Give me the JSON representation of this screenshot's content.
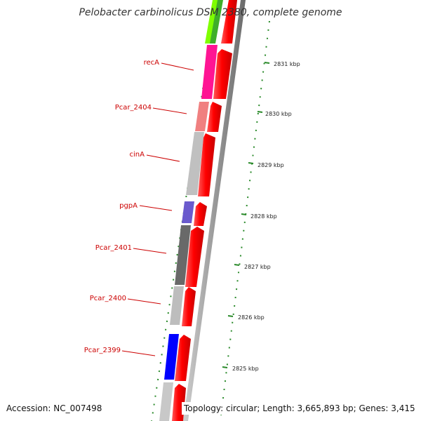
{
  "title": "Pelobacter carbinolicus DSM 2380, complete genome",
  "footer": {
    "accession": "Accession: NC_007498",
    "topology": "Topology: circular; Length: 3,665,893 bp; Genes: 3,415"
  },
  "colors": {
    "cds": "#ff0000",
    "backbone": "#888888",
    "gc_track": "#2a8a2a",
    "label": "#cc0000",
    "recA": "#ff1493",
    "Pcar_2404": "#f08080",
    "cinA": "#c0c0c0",
    "pgpA": "#6a5acd",
    "Pcar_2401": "#696969",
    "Pcar_2400": "#bdbdbd",
    "Pcar_2399": "#0000ff",
    "top_gene": "#7fff00"
  },
  "scale": {
    "ticks": [
      {
        "label": "2831 kbp",
        "kbp": 2831
      },
      {
        "label": "2830 kbp",
        "kbp": 2830
      },
      {
        "label": "2829 kbp",
        "kbp": 2829
      },
      {
        "label": "2828 kbp",
        "kbp": 2828
      },
      {
        "label": "2827 kbp",
        "kbp": 2827
      },
      {
        "label": "2826 kbp",
        "kbp": 2826
      },
      {
        "label": "2825 kbp",
        "kbp": 2825
      }
    ]
  },
  "genes": [
    {
      "name": "recA",
      "label": "recA",
      "color": "#ff1493"
    },
    {
      "name": "Pcar_2404",
      "label": "Pcar_2404",
      "color": "#f08080"
    },
    {
      "name": "cinA",
      "label": "cinA",
      "color": "#c0c0c0"
    },
    {
      "name": "pgpA",
      "label": "pgpA",
      "color": "#6a5acd"
    },
    {
      "name": "Pcar_2401",
      "label": "Pcar_2401",
      "color": "#696969"
    },
    {
      "name": "Pcar_2400",
      "label": "Pcar_2400",
      "color": "#bdbdbd"
    },
    {
      "name": "Pcar_2399",
      "label": "Pcar_2399",
      "color": "#0000ff"
    }
  ]
}
